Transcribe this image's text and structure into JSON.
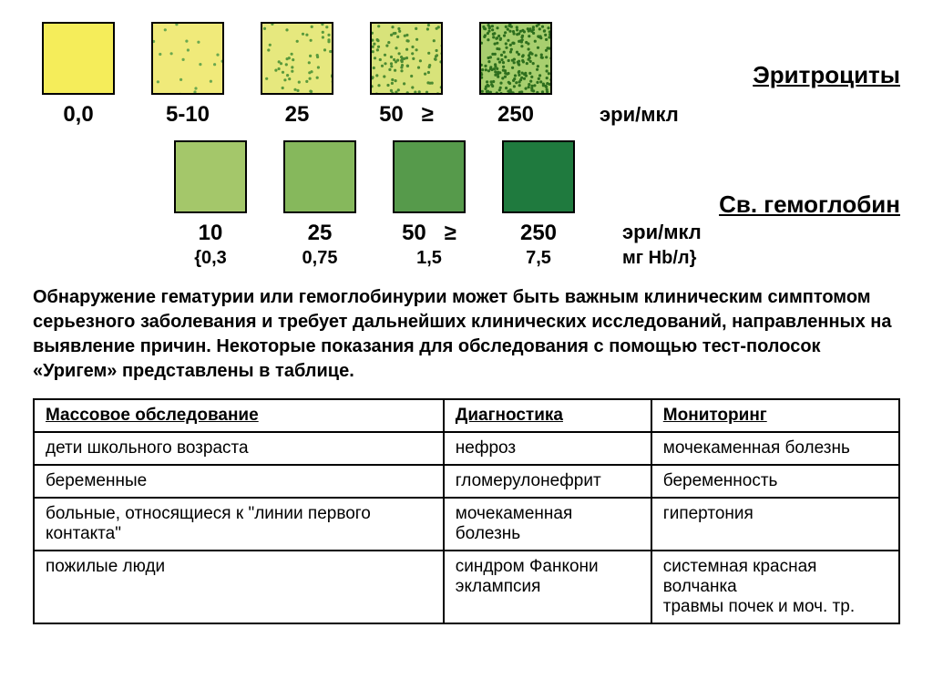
{
  "section1": {
    "title": "Эритроциты",
    "unit": "эри/мкл"
  },
  "section2": {
    "title": "Св. гемоглобин",
    "unit": "эри/мкл",
    "subunit": "мг Hb/л}"
  },
  "row1": {
    "swatches": [
      {
        "bg": "#f5ed5a",
        "dot_color": "#6aa84f",
        "dot_count": 0,
        "value": "0,0"
      },
      {
        "bg": "#f0ea7a",
        "dot_color": "#6aa84f",
        "dot_count": 20,
        "value": "5-10"
      },
      {
        "bg": "#e6e87e",
        "dot_color": "#5a9a3c",
        "dot_count": 55,
        "value": "25"
      },
      {
        "bg": "#d8e37a",
        "dot_color": "#4c8b32",
        "dot_count": 110,
        "value": "50",
        "prefix": "≥"
      },
      {
        "bg": "#a8cf6f",
        "dot_color": "#2e6f1e",
        "dot_count": 260,
        "value": "250"
      }
    ],
    "swatch_size": 80
  },
  "row2": {
    "swatches": [
      {
        "bg": "#a4c76a",
        "value": "10",
        "hb": "0,3",
        "hb_prefix": "{"
      },
      {
        "bg": "#86b85c",
        "value": "25",
        "hb": "0,75"
      },
      {
        "bg": "#569a4b",
        "value": "50",
        "hb": "1,5",
        "prefix": "≥"
      },
      {
        "bg": "#1f7a3e",
        "value": "250",
        "hb": "7,5"
      }
    ],
    "swatch_size": 80
  },
  "body_text": "Обнаружение гематурии или гемоглобинурии может быть важным клиническим симптомом серьезного заболевания и требует дальнейших клинических исследований, направленных на выявление причин. Некоторые показания для обследования с помощью тест-полосок «Уригем» представлены в таблице.",
  "table": {
    "headers": [
      "Массовое обследование",
      "Диагностика",
      "Мониторинг"
    ],
    "rows": [
      [
        "дети школьного возраста",
        "нефроз",
        "мочекаменная болезнь"
      ],
      [
        "беременные",
        "гломерулонефрит",
        "беременность"
      ],
      [
        "больные, относящиеся к \"линии первого контакта\"",
        "мочекаменная болезнь",
        "гипертония"
      ],
      [
        "пожилые люди",
        "синдром Фанкони\nэклампсия",
        "системная красная волчанка\nтравмы почек и моч. тр."
      ]
    ]
  }
}
